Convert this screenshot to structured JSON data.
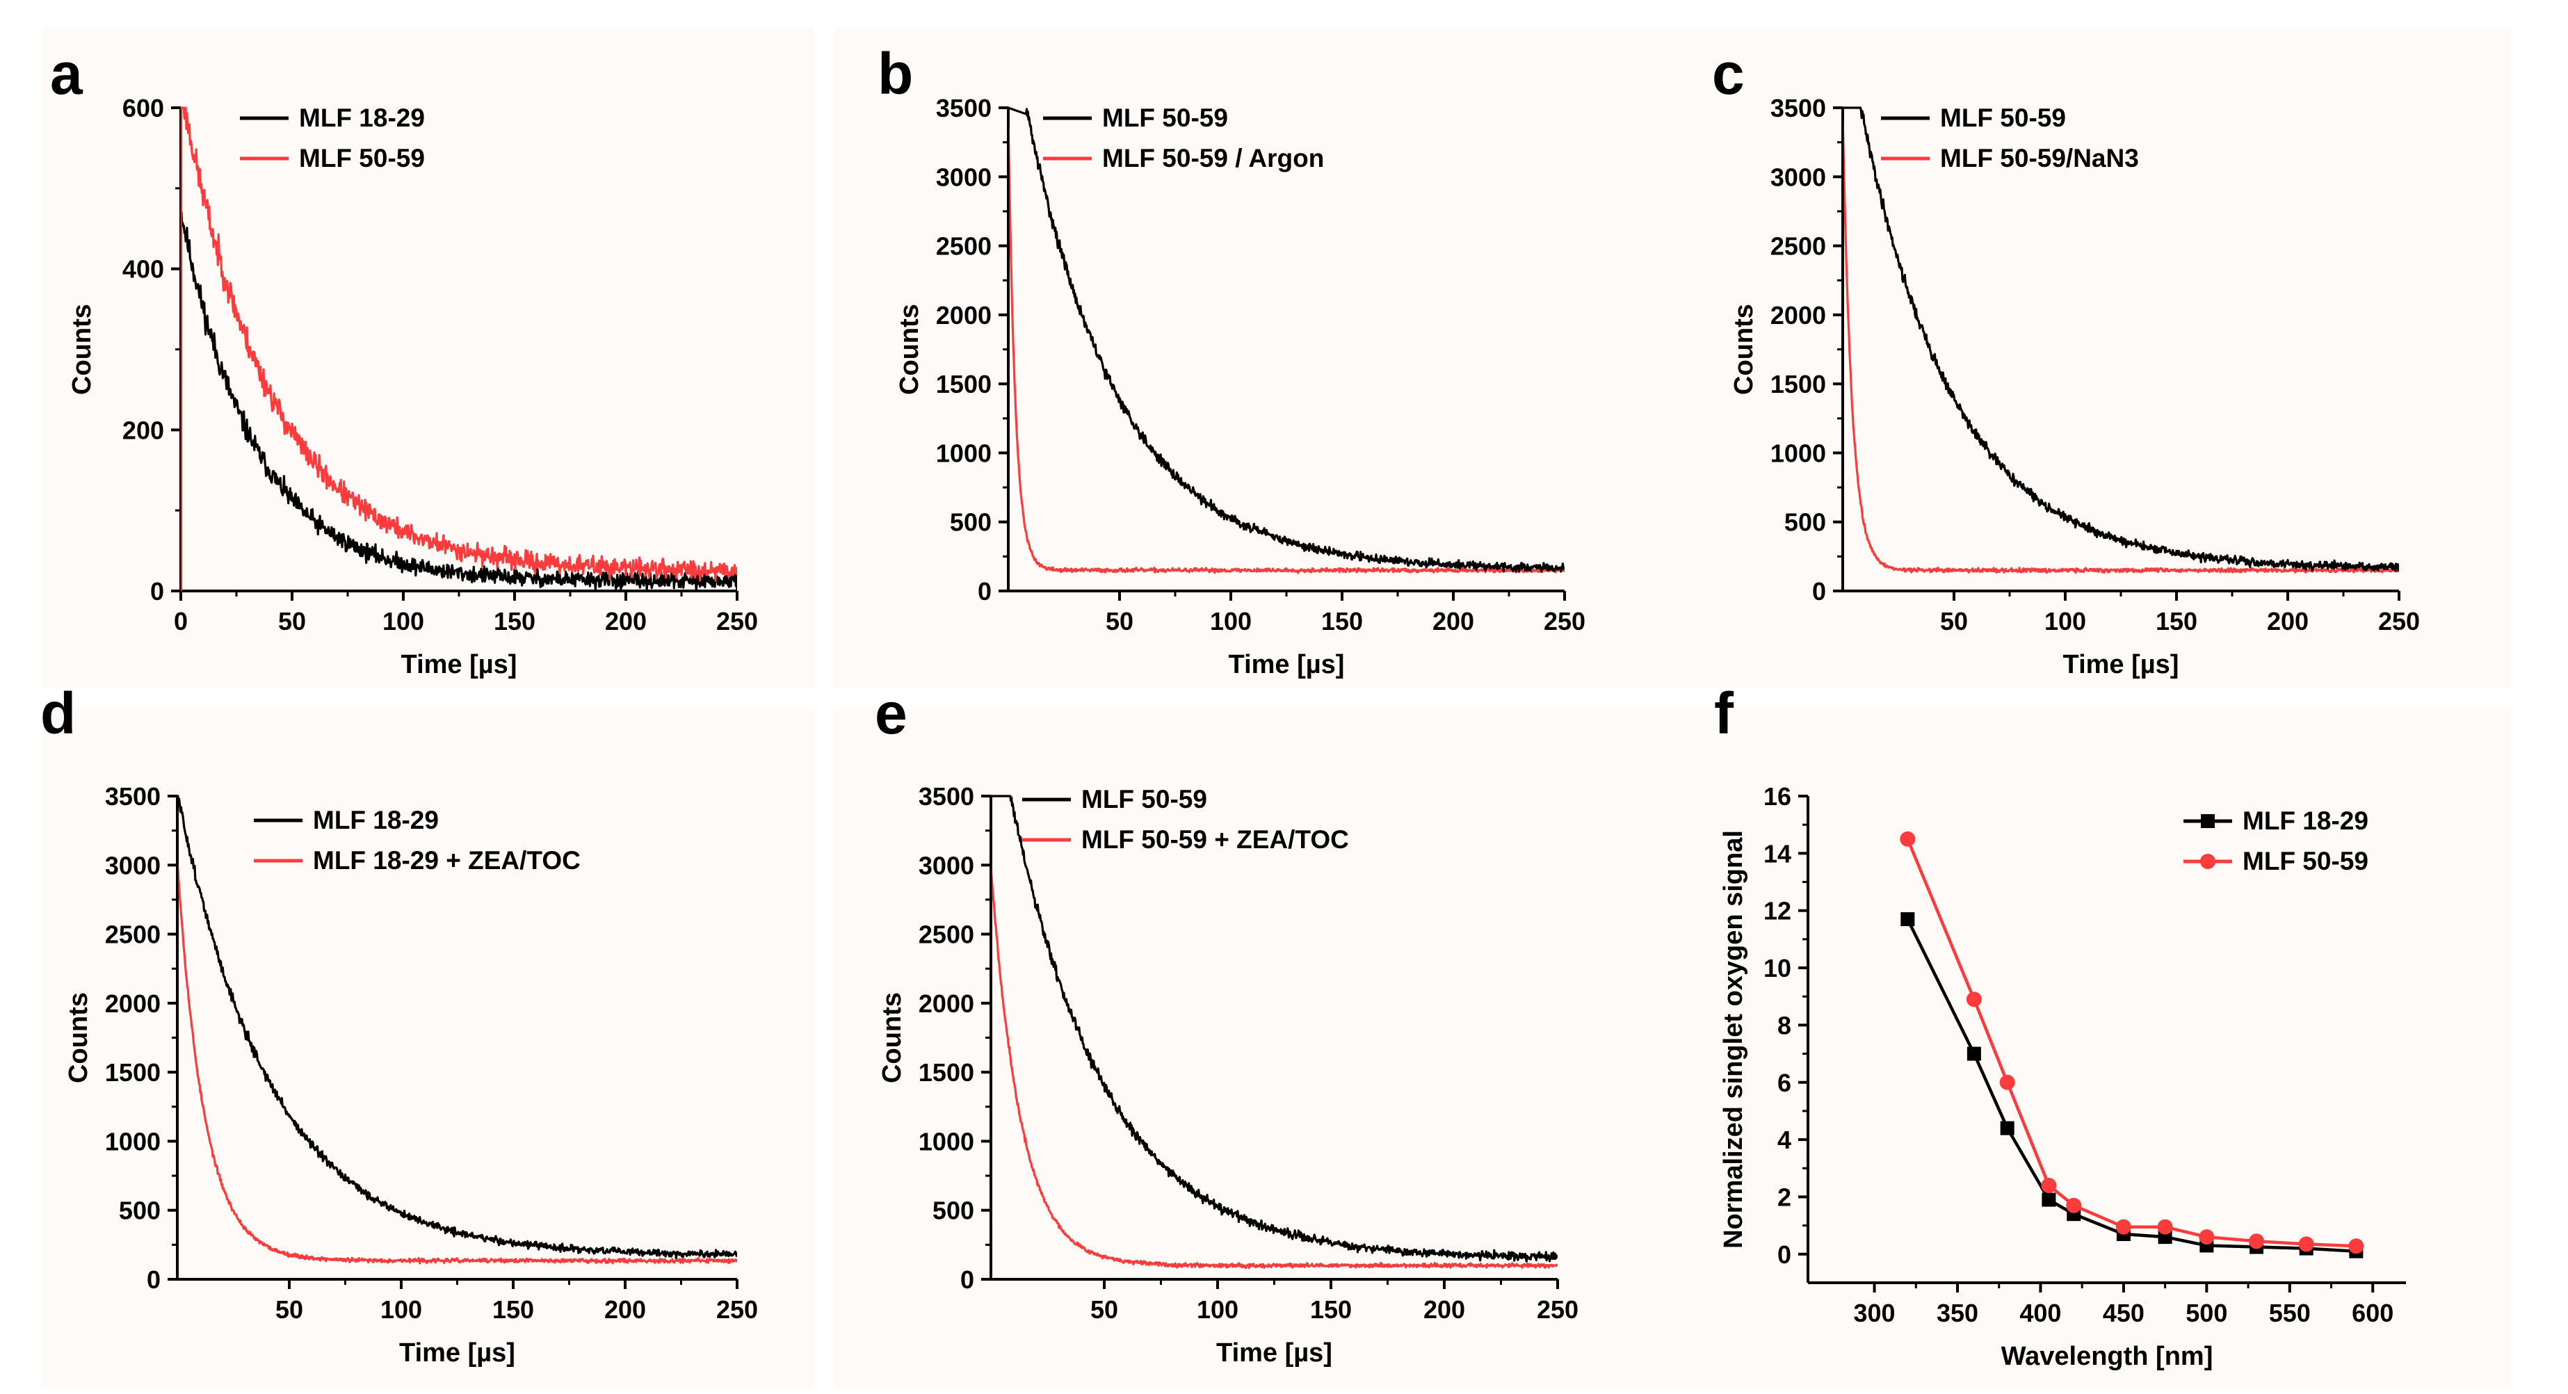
{
  "figure": {
    "background": "#ffffff",
    "panel_background": "#fdfaf8"
  },
  "chart_data": [
    {
      "panel": "a",
      "type": "line",
      "xlabel": "Time [µs]",
      "ylabel": "Counts",
      "xlim": [
        0,
        250
      ],
      "ylim": [
        0,
        600
      ],
      "xticks": [
        0,
        50,
        100,
        150,
        200,
        250
      ],
      "yticks": [
        0,
        200,
        400,
        600
      ],
      "legend_position": "top-center",
      "series": [
        {
          "name": "MLF 18-29",
          "color": "#000000",
          "t0": 0,
          "peak": 600,
          "amplitude": 460,
          "tau": 33,
          "baseline": 12,
          "noise": 16,
          "seed": 11
        },
        {
          "name": "MLF 50-59",
          "color": "#ff3b3b",
          "t0": 0,
          "peak": 600,
          "amplitude": 600,
          "tau": 40,
          "baseline": 25,
          "noise": 18,
          "seed": 23
        }
      ]
    },
    {
      "panel": "b",
      "type": "line",
      "xlabel": "Time [µs]",
      "ylabel": "Counts",
      "xlim": [
        0,
        250
      ],
      "ylim": [
        0,
        3500
      ],
      "xticks": [
        50,
        100,
        150,
        200,
        250
      ],
      "yticks": [
        0,
        500,
        1000,
        1500,
        2000,
        2500,
        3000,
        3500
      ],
      "legend_position": "top-center",
      "series": [
        {
          "name": "MLF 50-59",
          "color": "#000000",
          "t0": 8,
          "peak": 3500,
          "amplitude": 3350,
          "tau": 42,
          "baseline": 155,
          "noise": 45,
          "seed": 31
        },
        {
          "name": "MLF 50-59 / Argon",
          "color": "#ff3b3b",
          "t0": 0,
          "peak": 3500,
          "amplitude": 3300,
          "tau": 3.2,
          "baseline": 150,
          "noise": 22,
          "seed": 37
        }
      ]
    },
    {
      "panel": "c",
      "type": "line",
      "xlabel": "Time [µs]",
      "ylabel": "Counts",
      "xlim": [
        0,
        250
      ],
      "ylim": [
        0,
        3500
      ],
      "xticks": [
        50,
        100,
        150,
        200,
        250
      ],
      "yticks": [
        0,
        500,
        1000,
        1500,
        2000,
        2500,
        3000,
        3500
      ],
      "legend_position": "top-center",
      "series": [
        {
          "name": "MLF 50-59",
          "color": "#000000",
          "t0": 8,
          "peak": 3500,
          "amplitude": 3350,
          "tau": 42,
          "baseline": 160,
          "noise": 45,
          "seed": 41
        },
        {
          "name": "MLF 50-59/NaN3",
          "color": "#ff3b3b",
          "t0": 0,
          "peak": 3500,
          "amplitude": 3300,
          "tau": 4.2,
          "baseline": 150,
          "noise": 22,
          "seed": 43
        }
      ]
    },
    {
      "panel": "d",
      "type": "line",
      "xlabel": "Time [µs]",
      "ylabel": "Counts",
      "xlim": [
        0,
        250
      ],
      "ylim": [
        0,
        3500
      ],
      "xticks": [
        50,
        100,
        150,
        200,
        250
      ],
      "yticks": [
        0,
        500,
        1000,
        1500,
        2000,
        2500,
        3000,
        3500
      ],
      "legend_position": "top-center",
      "series": [
        {
          "name": "MLF 18-29",
          "color": "#000000",
          "t0": 0,
          "peak": 3500,
          "amplitude": 3350,
          "tau": 42,
          "baseline": 170,
          "noise": 40,
          "seed": 51
        },
        {
          "name": "MLF 18-29 + ZEA/TOC",
          "color": "#ff3b3b",
          "t0": 0,
          "peak": 3000,
          "amplitude": 2900,
          "tau": 12,
          "baseline": 135,
          "noise": 22,
          "seed": 53
        }
      ]
    },
    {
      "panel": "e",
      "type": "line",
      "xlabel": "Time [µs]",
      "ylabel": "Counts",
      "xlim": [
        0,
        250
      ],
      "ylim": [
        0,
        3500
      ],
      "xticks": [
        50,
        100,
        150,
        200,
        250
      ],
      "yticks": [
        0,
        500,
        1000,
        1500,
        2000,
        2500,
        3000,
        3500
      ],
      "legend_position": "top-center",
      "series": [
        {
          "name": "MLF 50-59",
          "color": "#000000",
          "t0": 8,
          "peak": 3500,
          "amplitude": 3400,
          "tau": 42,
          "baseline": 150,
          "noise": 45,
          "seed": 61
        },
        {
          "name": "MLF 50-59 + ZEA/TOC",
          "color": "#ff3b3b",
          "t0": 0,
          "peak": 3000,
          "amplitude": 2900,
          "tau": 13,
          "baseline": 100,
          "noise": 22,
          "seed": 67
        }
      ]
    },
    {
      "panel": "f",
      "type": "line",
      "xlabel": "Wavelength [nm]",
      "ylabel": "Normalized singlet oxygen signal",
      "xlim": [
        260,
        620
      ],
      "ylim": [
        -1,
        16
      ],
      "xticks": [
        300,
        350,
        400,
        450,
        500,
        550,
        600
      ],
      "yticks": [
        0,
        2,
        4,
        6,
        8,
        10,
        12,
        14,
        16
      ],
      "legend_position": "top-right",
      "series": [
        {
          "name": "MLF 18-29",
          "color": "#000000",
          "marker": "square",
          "x": [
            320,
            360,
            380,
            405,
            420,
            450,
            475,
            500,
            530,
            560,
            590
          ],
          "y": [
            11.7,
            7.0,
            4.4,
            1.9,
            1.4,
            0.7,
            0.6,
            0.3,
            0.25,
            0.2,
            0.1
          ]
        },
        {
          "name": "MLF 50-59",
          "color": "#ff3b3b",
          "marker": "circle",
          "x": [
            320,
            360,
            380,
            405,
            420,
            450,
            475,
            500,
            530,
            560,
            590
          ],
          "y": [
            14.5,
            8.9,
            6.0,
            2.4,
            1.7,
            0.95,
            0.95,
            0.6,
            0.45,
            0.35,
            0.28
          ]
        }
      ]
    }
  ]
}
